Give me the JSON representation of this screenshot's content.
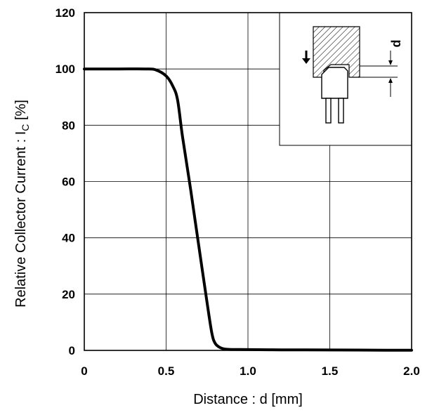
{
  "chart_data": {
    "type": "line",
    "xlabel": "Distance : d [mm]",
    "ylabel_main": "Relative Collector Current : I",
    "ylabel_sub": "C",
    "ylabel_tail": " [%]",
    "xlim": [
      0,
      2.0
    ],
    "ylim": [
      0,
      120
    ],
    "x_ticks": [
      "0",
      "0.5",
      "1.0",
      "1.5",
      "2.0"
    ],
    "x_tick_values": [
      0,
      0.5,
      1.0,
      1.5,
      2.0
    ],
    "y_ticks": [
      "0",
      "20",
      "40",
      "60",
      "80",
      "100",
      "120"
    ],
    "y_tick_values": [
      0,
      20,
      40,
      60,
      80,
      100,
      120
    ],
    "grid": true,
    "series": [
      {
        "x": [
          0,
          0.2,
          0.38,
          0.44,
          0.5,
          0.54,
          0.57,
          0.6,
          0.65,
          0.7,
          0.75,
          0.78,
          0.8,
          0.83,
          0.87,
          0.95,
          1.2,
          1.5,
          1.75,
          2.0
        ],
        "y": [
          100,
          100,
          100,
          99.6,
          97.5,
          94,
          89,
          76,
          57,
          37,
          17,
          6,
          2.5,
          1,
          0.4,
          0.3,
          0.2,
          0.15,
          0.1,
          0.05
        ]
      }
    ],
    "inset": {
      "label": "d",
      "position": "top-right"
    }
  }
}
